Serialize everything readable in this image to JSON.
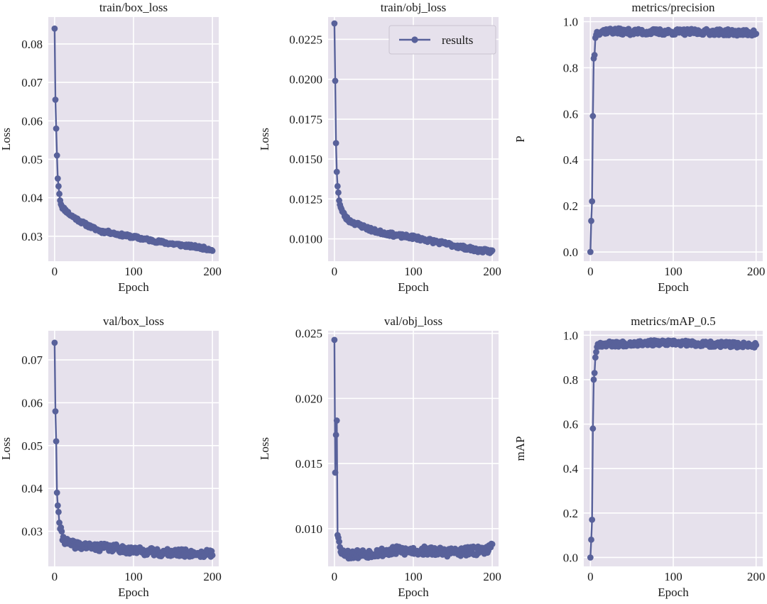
{
  "figure": {
    "background": "#ffffff",
    "plot_background": "#e6e1ec",
    "grid_color": "#ffffff",
    "series_color": "#58619a"
  },
  "legend": {
    "label": "results"
  },
  "chart_data": [
    {
      "id": "train_box_loss",
      "type": "line",
      "title": "train/box_loss",
      "xlabel": "Epoch",
      "ylabel": "Loss",
      "xlim": [
        -8,
        208
      ],
      "ylim": [
        0.0235,
        0.087
      ],
      "xticks": [
        0,
        100,
        200
      ],
      "xtick_labels": [
        "0",
        "100",
        "200"
      ],
      "yticks": [
        0.03,
        0.04,
        0.05,
        0.06,
        0.07,
        0.08
      ],
      "ytick_labels": [
        "0.03",
        "0.04",
        "0.05",
        "0.06",
        "0.07",
        "0.08"
      ],
      "series": [
        {
          "name": "results",
          "anchors": [
            [
              0,
              0.084
            ],
            [
              1,
              0.0655
            ],
            [
              2,
              0.058
            ],
            [
              3,
              0.051
            ],
            [
              4,
              0.045
            ],
            [
              5,
              0.043
            ],
            [
              6,
              0.041
            ],
            [
              7,
              0.0395
            ],
            [
              8,
              0.0385
            ],
            [
              10,
              0.0375
            ],
            [
              15,
              0.0365
            ],
            [
              20,
              0.0355
            ],
            [
              30,
              0.0342
            ],
            [
              40,
              0.033
            ],
            [
              50,
              0.032
            ],
            [
              60,
              0.0312
            ],
            [
              70,
              0.031
            ],
            [
              80,
              0.0305
            ],
            [
              100,
              0.0298
            ],
            [
              120,
              0.029
            ],
            [
              140,
              0.0283
            ],
            [
              160,
              0.0277
            ],
            [
              180,
              0.0272
            ],
            [
              200,
              0.0265
            ]
          ],
          "jitter": 0.0004,
          "seed": 11
        }
      ]
    },
    {
      "id": "train_obj_loss",
      "type": "line",
      "title": "train/obj_loss",
      "xlabel": "Epoch",
      "ylabel": "Loss",
      "xlim": [
        -8,
        208
      ],
      "ylim": [
        0.0086,
        0.0239
      ],
      "xticks": [
        0,
        100,
        200
      ],
      "xtick_labels": [
        "0",
        "100",
        "200"
      ],
      "yticks": [
        0.01,
        0.0125,
        0.015,
        0.0175,
        0.02,
        0.0225
      ],
      "ytick_labels": [
        "0.0100",
        "0.0125",
        "0.0150",
        "0.0175",
        "0.0200",
        "0.0225"
      ],
      "series": [
        {
          "name": "results",
          "anchors": [
            [
              0,
              0.0235
            ],
            [
              1,
              0.0199
            ],
            [
              2,
              0.016
            ],
            [
              3,
              0.0142
            ],
            [
              4,
              0.0133
            ],
            [
              5,
              0.0129
            ],
            [
              6,
              0.0124
            ],
            [
              8,
              0.012
            ],
            [
              10,
              0.0117
            ],
            [
              15,
              0.0113
            ],
            [
              20,
              0.0111
            ],
            [
              30,
              0.0109
            ],
            [
              40,
              0.0107
            ],
            [
              50,
              0.0105
            ],
            [
              60,
              0.0104
            ],
            [
              80,
              0.0102
            ],
            [
              100,
              0.0101
            ],
            [
              120,
              0.0099
            ],
            [
              140,
              0.0097
            ],
            [
              160,
              0.0095
            ],
            [
              180,
              0.0093
            ],
            [
              200,
              0.0092
            ]
          ],
          "jitter": 0.00012,
          "seed": 23
        }
      ],
      "legend": {
        "position": "top-right",
        "label_path": "legend.label"
      }
    },
    {
      "id": "metrics_precision",
      "type": "line",
      "title": "metrics/precision",
      "xlabel": "Epoch",
      "ylabel": "P",
      "xlim": [
        -8,
        208
      ],
      "ylim": [
        -0.04,
        1.02
      ],
      "xticks": [
        0,
        100,
        200
      ],
      "xtick_labels": [
        "0",
        "100",
        "200"
      ],
      "yticks": [
        0.0,
        0.2,
        0.4,
        0.6,
        0.8,
        1.0
      ],
      "ytick_labels": [
        "0.0",
        "0.2",
        "0.4",
        "0.6",
        "0.8",
        "1.0"
      ],
      "series": [
        {
          "name": "results",
          "anchors": [
            [
              0,
              0.0
            ],
            [
              1,
              0.135
            ],
            [
              2,
              0.22
            ],
            [
              3,
              0.59
            ],
            [
              4,
              0.84
            ],
            [
              5,
              0.855
            ],
            [
              6,
              0.93
            ],
            [
              7,
              0.95
            ],
            [
              10,
              0.955
            ],
            [
              20,
              0.96
            ],
            [
              50,
              0.955
            ],
            [
              100,
              0.955
            ],
            [
              150,
              0.955
            ],
            [
              200,
              0.95
            ]
          ],
          "jitter": 0.013,
          "seed": 37
        }
      ]
    },
    {
      "id": "val_box_loss",
      "type": "line",
      "title": "val/box_loss",
      "xlabel": "Epoch",
      "ylabel": "Loss",
      "xlim": [
        -8,
        208
      ],
      "ylim": [
        0.0218,
        0.0768
      ],
      "xticks": [
        0,
        100,
        200
      ],
      "xtick_labels": [
        "0",
        "100",
        "200"
      ],
      "yticks": [
        0.03,
        0.04,
        0.05,
        0.06,
        0.07
      ],
      "ytick_labels": [
        "0.03",
        "0.04",
        "0.05",
        "0.06",
        "0.07"
      ],
      "series": [
        {
          "name": "results",
          "anchors": [
            [
              0,
              0.074
            ],
            [
              1,
              0.058
            ],
            [
              2,
              0.051
            ],
            [
              3,
              0.039
            ],
            [
              4,
              0.036
            ],
            [
              5,
              0.0345
            ],
            [
              6,
              0.032
            ],
            [
              8,
              0.03
            ],
            [
              10,
              0.0285
            ],
            [
              15,
              0.0275
            ],
            [
              20,
              0.027
            ],
            [
              40,
              0.0265
            ],
            [
              60,
              0.0262
            ],
            [
              80,
              0.026
            ],
            [
              100,
              0.0255
            ],
            [
              120,
              0.0252
            ],
            [
              140,
              0.025
            ],
            [
              160,
              0.0249
            ],
            [
              180,
              0.0248
            ],
            [
              200,
              0.0248
            ]
          ],
          "jitter": 0.0009,
          "seed": 41
        }
      ]
    },
    {
      "id": "val_obj_loss",
      "type": "line",
      "title": "val/obj_loss",
      "xlabel": "Epoch",
      "ylabel": "Loss",
      "xlim": [
        -8,
        208
      ],
      "ylim": [
        0.0071,
        0.0252
      ],
      "xticks": [
        0,
        100,
        200
      ],
      "xtick_labels": [
        "0",
        "100",
        "200"
      ],
      "yticks": [
        0.01,
        0.015,
        0.02,
        0.025
      ],
      "ytick_labels": [
        "0.010",
        "0.015",
        "0.020",
        "0.025"
      ],
      "series": [
        {
          "name": "results",
          "anchors": [
            [
              0,
              0.0245
            ],
            [
              1,
              0.0143
            ],
            [
              2,
              0.0172
            ],
            [
              3,
              0.0183
            ],
            [
              4,
              0.0095
            ],
            [
              5,
              0.0093
            ],
            [
              6,
              0.009
            ],
            [
              8,
              0.0085
            ],
            [
              10,
              0.0082
            ],
            [
              20,
              0.008
            ],
            [
              40,
              0.0081
            ],
            [
              60,
              0.0082
            ],
            [
              80,
              0.0083
            ],
            [
              100,
              0.0083
            ],
            [
              120,
              0.0083
            ],
            [
              140,
              0.0082
            ],
            [
              160,
              0.0082
            ],
            [
              180,
              0.0083
            ],
            [
              200,
              0.0085
            ]
          ],
          "jitter": 0.00035,
          "seed": 53
        }
      ]
    },
    {
      "id": "metrics_map_05",
      "type": "line",
      "title": "metrics/mAP_0.5",
      "xlabel": "Epoch",
      "ylabel": "mAP",
      "xlim": [
        -8,
        208
      ],
      "ylim": [
        -0.04,
        1.02
      ],
      "xticks": [
        0,
        100,
        200
      ],
      "xtick_labels": [
        "0",
        "100",
        "200"
      ],
      "yticks": [
        0.0,
        0.2,
        0.4,
        0.6,
        0.8,
        1.0
      ],
      "ytick_labels": [
        "0.0",
        "0.2",
        "0.4",
        "0.6",
        "0.8",
        "1.0"
      ],
      "series": [
        {
          "name": "results",
          "anchors": [
            [
              0,
              0.0
            ],
            [
              1,
              0.08
            ],
            [
              2,
              0.17
            ],
            [
              3,
              0.58
            ],
            [
              4,
              0.8
            ],
            [
              5,
              0.83
            ],
            [
              6,
              0.9
            ],
            [
              7,
              0.93
            ],
            [
              8,
              0.95
            ],
            [
              10,
              0.96
            ],
            [
              30,
              0.96
            ],
            [
              60,
              0.965
            ],
            [
              100,
              0.965
            ],
            [
              140,
              0.96
            ],
            [
              200,
              0.955
            ]
          ],
          "jitter": 0.012,
          "seed": 67
        }
      ]
    }
  ]
}
